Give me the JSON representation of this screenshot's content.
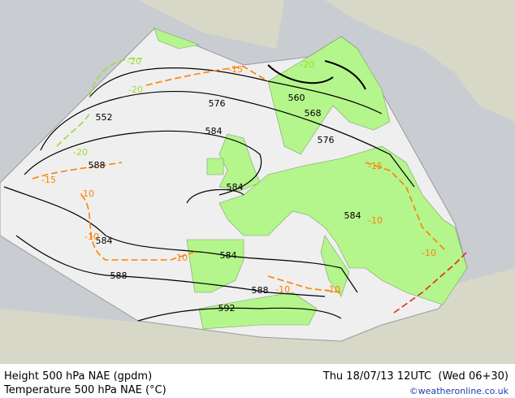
{
  "map": {
    "height_labels": [
      "552",
      "560",
      "568",
      "576",
      "576",
      "584",
      "588",
      "584",
      "584",
      "584",
      "588",
      "588",
      "592",
      "584"
    ],
    "temperature_labels": [
      "-20",
      "-20",
      "-20",
      "-20",
      "-15",
      "-15",
      "-15",
      "-10",
      "-10",
      "-10",
      "-10",
      "-10",
      "-10",
      "-10"
    ]
  },
  "footer": {
    "line1_left": "Height 500 hPa NAE (gpdm)",
    "line1_right": "Thu 18/07/13 12UTC  (Wed 06+30)",
    "line2_left": "Temperature 500 hPa NAE (°C)",
    "copyright": "©weatheronline.co.uk"
  }
}
